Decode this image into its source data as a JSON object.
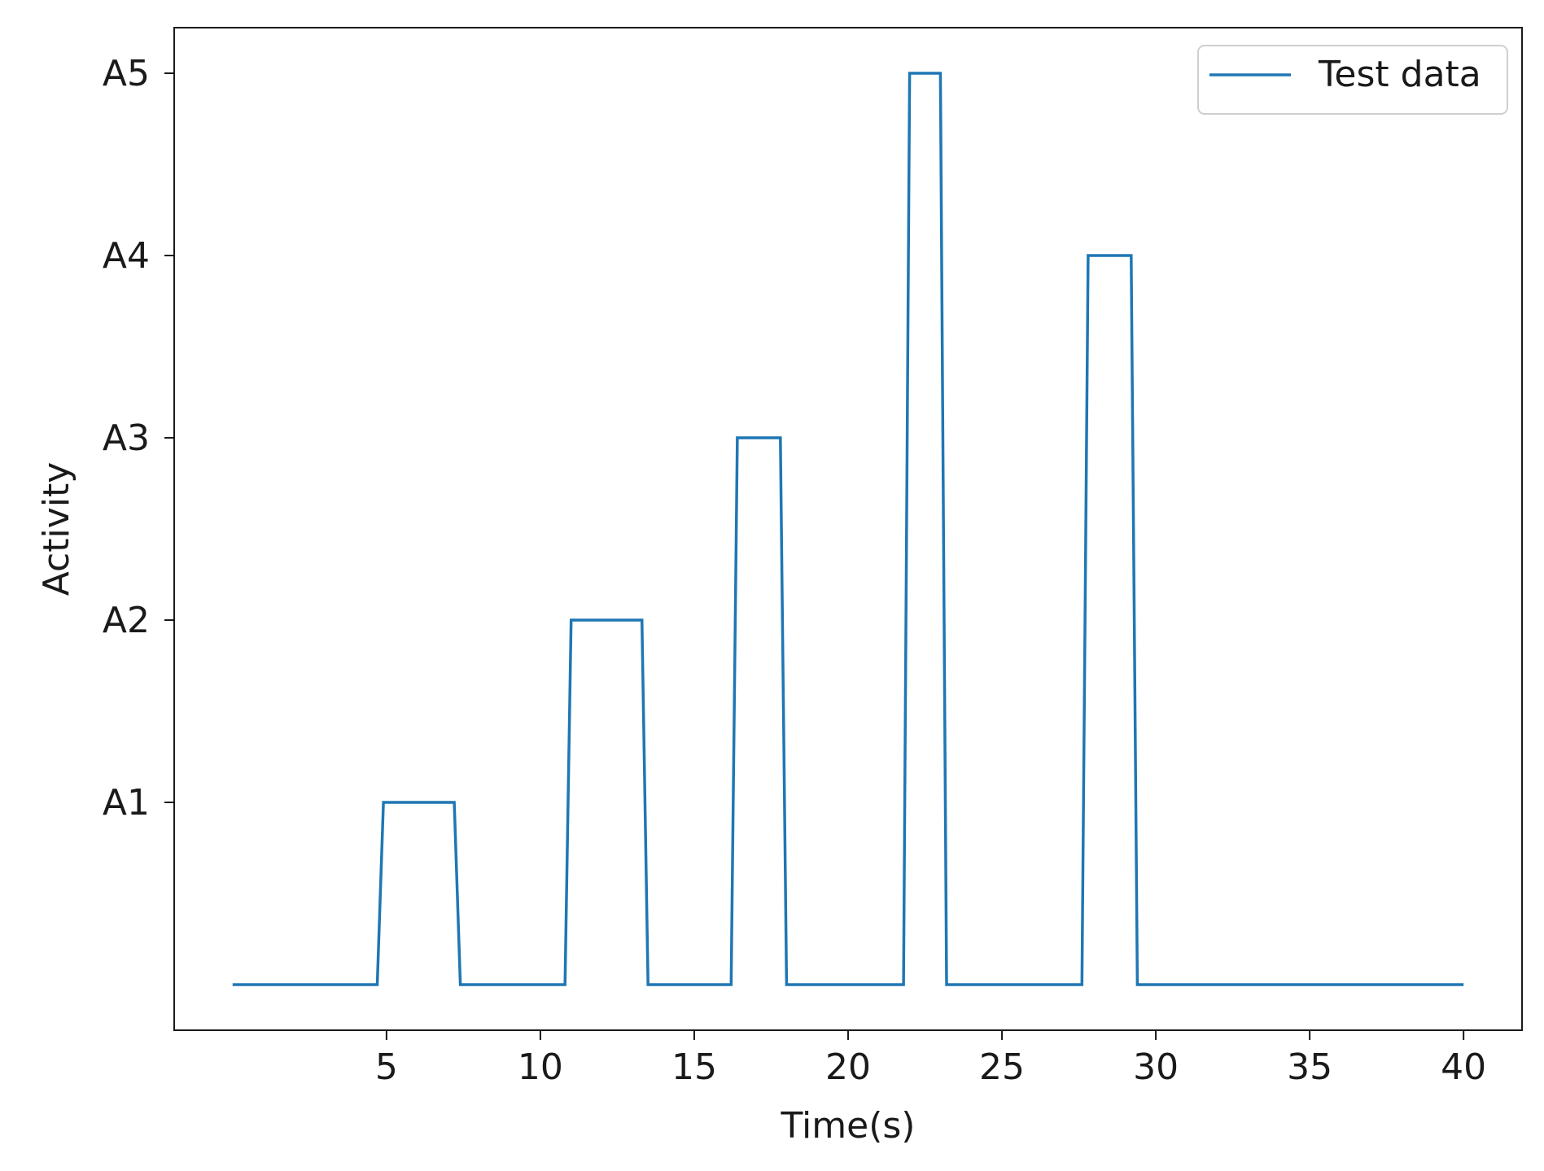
{
  "chart_data": {
    "type": "line",
    "xlabel": "Time(s)",
    "ylabel": "Activity",
    "xlim": [
      -1.9,
      41.9
    ],
    "ylim": [
      -0.25,
      5.25
    ],
    "x_ticks": [
      5,
      10,
      15,
      20,
      25,
      30,
      35,
      40
    ],
    "y_ticks": [
      {
        "value": 1,
        "label": "A1"
      },
      {
        "value": 2,
        "label": "A2"
      },
      {
        "value": 3,
        "label": "A3"
      },
      {
        "value": 4,
        "label": "A4"
      },
      {
        "value": 5,
        "label": "A5"
      }
    ],
    "grid": false,
    "legend_position": "top-right",
    "series": [
      {
        "name": "Test data",
        "color": "#1f77b4",
        "x": [
          0,
          4.7,
          4.9,
          7.2,
          7.4,
          10.8,
          11.0,
          13.3,
          13.5,
          16.2,
          16.4,
          17.8,
          18.0,
          21.8,
          22.0,
          23.0,
          23.2,
          27.6,
          27.8,
          29.2,
          29.4,
          40
        ],
        "y": [
          0,
          0,
          1,
          1,
          0,
          0,
          2,
          2,
          0,
          0,
          3,
          3,
          0,
          0,
          5,
          5,
          0,
          0,
          4,
          4,
          0,
          0
        ]
      }
    ]
  }
}
